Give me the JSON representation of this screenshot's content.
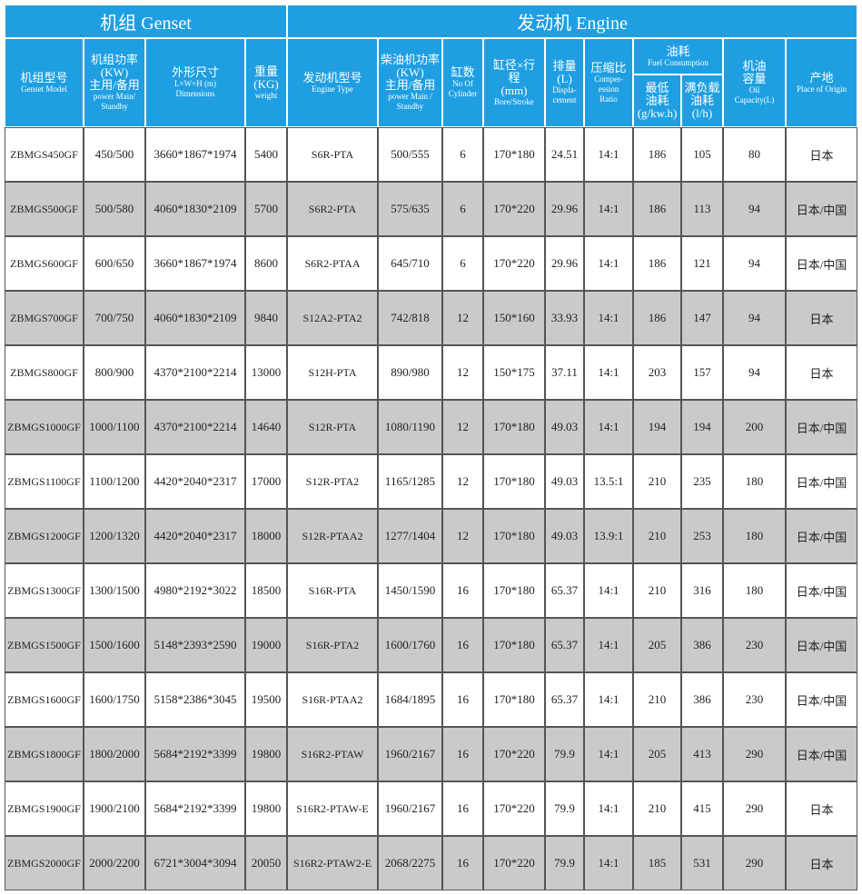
{
  "header": {
    "groups": [
      "机组 Genset",
      "发动机 Engine"
    ],
    "columns": [
      [
        "机组型号",
        "Genset Model"
      ],
      [
        "机组功率",
        "(KW)",
        "主用/备用",
        "power Main/",
        "Standby"
      ],
      [
        "外形尺寸",
        "L×W×H (m)",
        "Dimensions"
      ],
      [
        "重量",
        "(KG)",
        "weight"
      ],
      [
        "发动机型号",
        "Engine Type"
      ],
      [
        "柴油机功率",
        "(KW)",
        "主用/备用",
        "power Main /",
        "Standby"
      ],
      [
        "缸数",
        "No Of",
        "Cylinder"
      ],
      [
        "缸径×行",
        "程",
        "(mm)",
        "Bore/Stroke"
      ],
      [
        "排量",
        "(L)",
        "Displa-",
        "cement"
      ],
      [
        "压缩比",
        "Comper-",
        "ession",
        "Ratio"
      ],
      [
        "最低",
        "油耗",
        "(g/kw.h)"
      ],
      [
        "满负载",
        "油耗",
        "(l/h)"
      ],
      [
        "机油",
        "容量",
        "Oil",
        "Capacity(L)"
      ],
      [
        "产地",
        "Place of Origin"
      ]
    ],
    "fuel_group": [
      "油耗",
      "Fuel Consumption"
    ]
  },
  "table": {
    "rows": [
      [
        "ZBMGS450GF",
        "450/500",
        "3660*1867*1974",
        "5400",
        "S6R-PTA",
        "500/555",
        "6",
        "170*180",
        "24.51",
        "14:1",
        "186",
        "105",
        "80",
        "日本"
      ],
      [
        "ZBMGS500GF",
        "500/580",
        "4060*1830*2109",
        "5700",
        "S6R2-PTA",
        "575/635",
        "6",
        "170*220",
        "29.96",
        "14:1",
        "186",
        "113",
        "94",
        "日本/中国"
      ],
      [
        "ZBMGS600GF",
        "600/650",
        "3660*1867*1974",
        "8600",
        "S6R2-PTAA",
        "645/710",
        "6",
        "170*220",
        "29.96",
        "14:1",
        "186",
        "121",
        "94",
        "日本/中国"
      ],
      [
        "ZBMGS700GF",
        "700/750",
        "4060*1830*2109",
        "9840",
        "S12A2-PTA2",
        "742/818",
        "12",
        "150*160",
        "33.93",
        "14:1",
        "186",
        "147",
        "94",
        "日本"
      ],
      [
        "ZBMGS800GF",
        "800/900",
        "4370*2100*2214",
        "13000",
        "S12H-PTA",
        "890/980",
        "12",
        "150*175",
        "37.11",
        "14:1",
        "203",
        "157",
        "94",
        "日本"
      ],
      [
        "ZBMGS1000GF",
        "1000/1100",
        "4370*2100*2214",
        "14640",
        "S12R-PTA",
        "1080/1190",
        "12",
        "170*180",
        "49.03",
        "14:1",
        "194",
        "194",
        "200",
        "日本/中国"
      ],
      [
        "ZBMGS1100GF",
        "1100/1200",
        "4420*2040*2317",
        "17000",
        "S12R-PTA2",
        "1165/1285",
        "12",
        "170*180",
        "49.03",
        "13.5:1",
        "210",
        "235",
        "180",
        "日本/中国"
      ],
      [
        "ZBMGS1200GF",
        "1200/1320",
        "4420*2040*2317",
        "18000",
        "S12R-PTAA2",
        "1277/1404",
        "12",
        "170*180",
        "49.03",
        "13.9:1",
        "210",
        "253",
        "180",
        "日本/中国"
      ],
      [
        "ZBMGS1300GF",
        "1300/1500",
        "4980*2192*3022",
        "18500",
        "S16R-PTA",
        "1450/1590",
        "16",
        "170*180",
        "65.37",
        "14:1",
        "210",
        "316",
        "180",
        "日本/中国"
      ],
      [
        "ZBMGS1500GF",
        "1500/1600",
        "5148*2393*2590",
        "19000",
        "S16R-PTA2",
        "1600/1760",
        "16",
        "170*180",
        "65.37",
        "14:1",
        "205",
        "386",
        "230",
        "日本/中国"
      ],
      [
        "ZBMGS1600GF",
        "1600/1750",
        "5158*2386*3045",
        "19500",
        "S16R-PTAA2",
        "1684/1895",
        "16",
        "170*180",
        "65.37",
        "14:1",
        "210",
        "386",
        "230",
        "日本/中国"
      ],
      [
        "ZBMGS1800GF",
        "1800/2000",
        "5684*2192*3399",
        "19800",
        "S16R2-PTAW",
        "1960/2167",
        "16",
        "170*220",
        "79.9",
        "14:1",
        "205",
        "413",
        "290",
        "日本/中国"
      ],
      [
        "ZBMGS1900GF",
        "1900/2100",
        "5684*2192*3399",
        "19800",
        "S16R2-PTAW-E",
        "1960/2167",
        "16",
        "170*220",
        "79.9",
        "14:1",
        "210",
        "415",
        "290",
        "日本"
      ],
      [
        "ZBMGS2000GF",
        "2000/2200",
        "6721*3004*3094",
        "20050",
        "S16R2-PTAW2-E",
        "2068/2275",
        "16",
        "170*220",
        "79.9",
        "14:1",
        "185",
        "531",
        "290",
        "日本"
      ]
    ]
  }
}
